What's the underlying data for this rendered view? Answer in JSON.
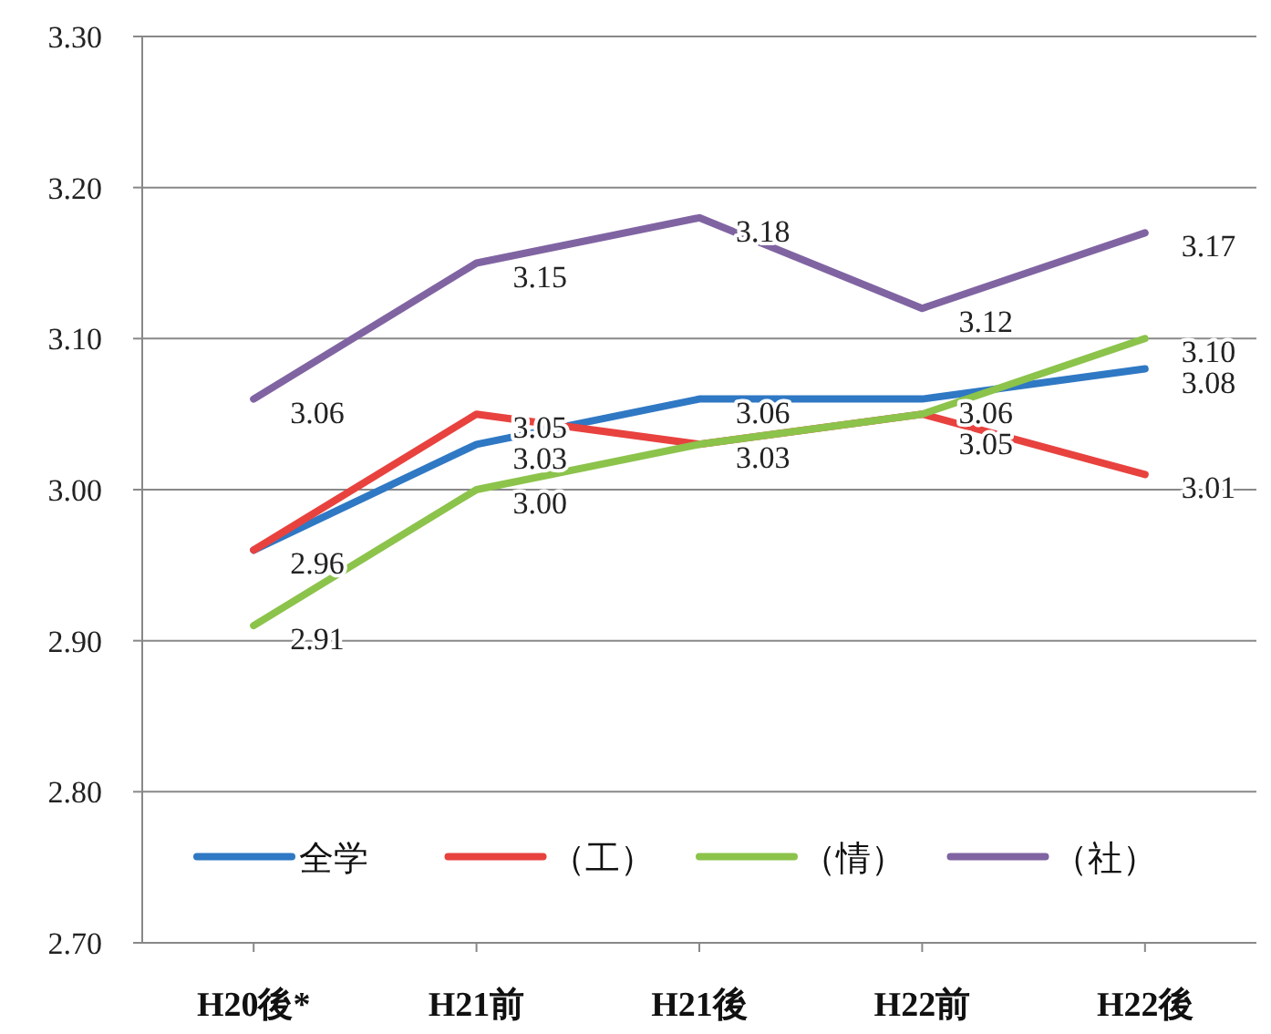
{
  "chart_data": {
    "type": "line",
    "categories": [
      "H20後*",
      "H21前",
      "H21後",
      "H22前",
      "H22後"
    ],
    "series": [
      {
        "name": "全学",
        "color": "#2f78c4",
        "values": [
          2.96,
          3.03,
          3.06,
          3.06,
          3.08
        ],
        "value_labels": [
          "2.96",
          "3.03",
          "3.06",
          "3.06",
          "3.08"
        ]
      },
      {
        "name": "（工）",
        "color": "#e8423f",
        "values": [
          2.96,
          3.05,
          3.03,
          3.05,
          3.01
        ],
        "value_labels": [
          null,
          "3.05",
          "3.03",
          "3.05",
          "3.01"
        ]
      },
      {
        "name": "（情）",
        "color": "#8cc34b",
        "values": [
          2.91,
          3.0,
          3.03,
          3.05,
          3.1
        ],
        "value_labels": [
          "2.91",
          "3.00",
          null,
          null,
          "3.10"
        ]
      },
      {
        "name": "（社）",
        "color": "#8064a2",
        "values": [
          3.06,
          3.15,
          3.18,
          3.12,
          3.17
        ],
        "value_labels": [
          "3.06",
          "3.15",
          "3.18",
          "3.12",
          "3.17"
        ]
      }
    ],
    "ylim": [
      2.7,
      3.3
    ],
    "yticks": [
      {
        "value": 2.7,
        "label": "2.70"
      },
      {
        "value": 2.8,
        "label": "2.80"
      },
      {
        "value": 2.9,
        "label": "2.90"
      },
      {
        "value": 3.0,
        "label": "3.00"
      },
      {
        "value": 3.1,
        "label": "3.10"
      },
      {
        "value": 3.2,
        "label": "3.20"
      },
      {
        "value": 3.3,
        "label": "3.30"
      }
    ],
    "grid": "y",
    "legend": "bottom",
    "marker": "none",
    "line_style": "solid"
  }
}
